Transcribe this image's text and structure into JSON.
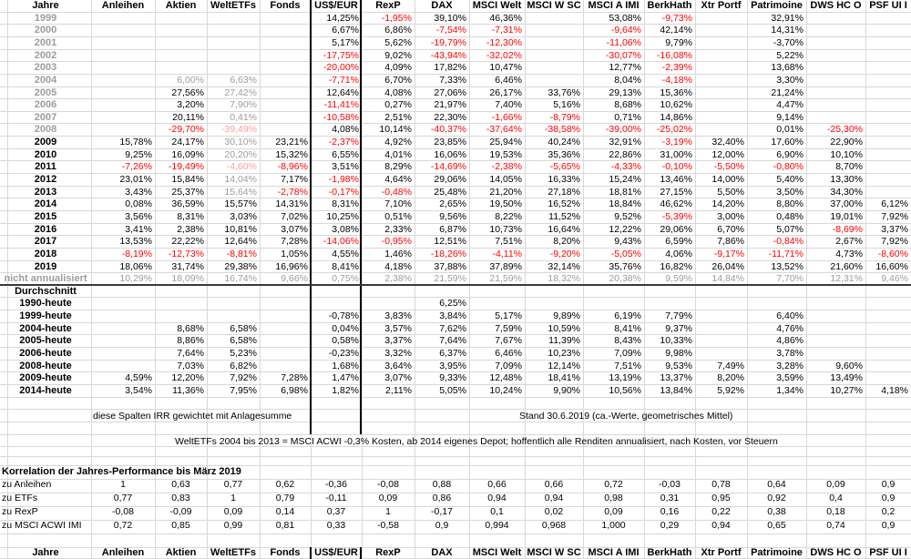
{
  "colors": {
    "red": "#ff0000",
    "gray": "#9d9d9d",
    "pink": "#ff9d9d",
    "black": "#000000",
    "grid": "#d8d8d8",
    "thick_border": "#000000"
  },
  "columns": [
    "Jahre",
    "Anleihen",
    "Aktien",
    "WeltETFs",
    "Fonds",
    "US$/EUR",
    "RexP",
    "DAX",
    "MSCI Welt",
    "MSCI W SC",
    "MSCI A IMI",
    "BerkHath",
    "Xtr Portf",
    "Patrimoine",
    "DWS HC O",
    "PSF UI I"
  ],
  "table_rows": [
    {
      "label": "1999",
      "k": "y",
      "ls": "g",
      "cells": [
        "",
        "",
        "",
        "",
        "14,25%",
        "-1,95%",
        "39,10%",
        "46,36%",
        "",
        "53,08%",
        "-9,73%",
        "",
        "32,91%",
        "",
        ""
      ]
    },
    {
      "label": "2000",
      "k": "y",
      "ls": "g",
      "cells": [
        "",
        "",
        "",
        "",
        "6,67%",
        "6,86%",
        "-7,54%",
        "-7,31%",
        "",
        "-9,64%",
        "42,14%",
        "",
        "14,31%",
        "",
        ""
      ]
    },
    {
      "label": "2001",
      "k": "y",
      "ls": "g",
      "cells": [
        "",
        "",
        "",
        "",
        "5,17%",
        "5,62%",
        "-19,79%",
        "-12,30%",
        "",
        "-11,06%",
        "9,79%",
        "",
        {
          "v": "-3,70%",
          "s": "black"
        },
        "",
        ""
      ]
    },
    {
      "label": "2002",
      "k": "y",
      "ls": "g",
      "cells": [
        "",
        "",
        "",
        "",
        "-17,75%",
        "9,02%",
        "-43,94%",
        "-32,02%",
        "",
        "-30,07%",
        "-16,08%",
        "",
        "5,22%",
        "",
        ""
      ]
    },
    {
      "label": "2003",
      "k": "y",
      "ls": "g",
      "cells": [
        "",
        "",
        "",
        "",
        "-20,00%",
        "4,09%",
        "17,82%",
        "10,47%",
        "",
        "12,77%",
        "-2,39%",
        "",
        "13,68%",
        "",
        ""
      ]
    },
    {
      "label": "2004",
      "k": "y",
      "ls": "g",
      "cells": [
        "",
        {
          "v": "6,00%",
          "s": "gray"
        },
        {
          "v": "6,63%",
          "s": "gray"
        },
        "",
        "-7,71%",
        "6,70%",
        "7,33%",
        "6,46%",
        "",
        "8,04%",
        "-4,18%",
        "",
        "3,30%",
        "",
        ""
      ]
    },
    {
      "label": "2005",
      "k": "y",
      "ls": "g",
      "cells": [
        "",
        "27,56%",
        {
          "v": "27,42%",
          "s": "gray"
        },
        "",
        "12,64%",
        "4,08%",
        "27,06%",
        "26,17%",
        "33,76%",
        "29,13%",
        "15,36%",
        "",
        "21,24%",
        "",
        ""
      ]
    },
    {
      "label": "2006",
      "k": "y",
      "ls": "g",
      "cells": [
        "",
        "3,20%",
        {
          "v": "7,90%",
          "s": "gray"
        },
        "",
        "-11,41%",
        "0,27%",
        "21,97%",
        "7,40%",
        "5,16%",
        "8,68%",
        "10,62%",
        "",
        "4,47%",
        "",
        ""
      ]
    },
    {
      "label": "2007",
      "k": "y",
      "ls": "g",
      "cells": [
        "",
        "20,11%",
        {
          "v": "0,41%",
          "s": "gray"
        },
        "",
        "-10,58%",
        "2,51%",
        "22,30%",
        "-1,66%",
        "-8,79%",
        "0,71%",
        "14,86%",
        "",
        "9,14%",
        "",
        ""
      ]
    },
    {
      "label": "2008",
      "k": "y",
      "ls": "g",
      "cells": [
        "",
        "-29,70%",
        {
          "v": "-39,49%",
          "s": "pink"
        },
        "",
        "4,08%",
        "10,14%",
        "-40,37%",
        "-37,64%",
        "-38,58%",
        "-39,00%",
        "-25,02%",
        "",
        "0,01%",
        "-25,30%",
        ""
      ]
    },
    {
      "label": "2009",
      "k": "y",
      "ls": "b",
      "cells": [
        "15,78%",
        "24,17%",
        {
          "v": "30,10%",
          "s": "gray"
        },
        "23,21%",
        "-2,37%",
        "4,92%",
        "23,85%",
        "25,94%",
        "40,24%",
        "32,91%",
        "-3,19%",
        "32,40%",
        "17,60%",
        "22,90%",
        ""
      ]
    },
    {
      "label": "2010",
      "k": "y",
      "ls": "b",
      "cells": [
        "9,25%",
        "16,09%",
        {
          "v": "20,20%",
          "s": "gray"
        },
        "15,32%",
        "6,55%",
        "4,01%",
        "16,06%",
        "19,53%",
        "35,36%",
        "22,86%",
        "31,00%",
        "12,00%",
        "6,90%",
        "10,10%",
        ""
      ]
    },
    {
      "label": "2011",
      "k": "y",
      "ls": "b",
      "cells": [
        "-7,26%",
        "-19,49%",
        {
          "v": "-4,60%",
          "s": "pink"
        },
        "-8,96%",
        "3,51%",
        "8,29%",
        "-14,69%",
        "-2,38%",
        "-5,65%",
        "-4,33%",
        "-0,10%",
        "-5,50%",
        "-0,80%",
        "8,70%",
        ""
      ]
    },
    {
      "label": "2012",
      "k": "y",
      "ls": "b",
      "cells": [
        "23,01%",
        "15,84%",
        {
          "v": "14,04%",
          "s": "gray"
        },
        "7,17%",
        "-1,98%",
        "4,64%",
        "29,06%",
        "14,05%",
        "16,33%",
        "15,24%",
        "13,46%",
        "14,00%",
        "5,40%",
        "13,30%",
        ""
      ]
    },
    {
      "label": "2013",
      "k": "y",
      "ls": "b",
      "cells": [
        "3,43%",
        "25,37%",
        {
          "v": "15,64%",
          "s": "gray"
        },
        "-2,78%",
        "-0,17%",
        "-0,48%",
        "25,48%",
        "21,20%",
        "27,18%",
        "18,81%",
        "27,15%",
        "5,50%",
        "3,50%",
        "34,30%",
        ""
      ]
    },
    {
      "label": "2014",
      "k": "y",
      "ls": "b",
      "cells": [
        "0,08%",
        "36,59%",
        "15,57%",
        "14,31%",
        "8,31%",
        "7,10%",
        "2,65%",
        "19,50%",
        "16,52%",
        "18,84%",
        "46,62%",
        "14,20%",
        "8,80%",
        "37,00%",
        "6,12%"
      ]
    },
    {
      "label": "2015",
      "k": "y",
      "ls": "b",
      "cells": [
        "3,56%",
        "8,31%",
        "3,03%",
        "7,02%",
        "10,25%",
        "0,51%",
        "9,56%",
        "8,22%",
        "11,52%",
        "9,52%",
        "-5,39%",
        "3,00%",
        "0,48%",
        "19,01%",
        "7,92%"
      ]
    },
    {
      "label": "2016",
      "k": "y",
      "ls": "b",
      "cells": [
        "3,41%",
        "2,38%",
        "10,81%",
        "3,07%",
        "3,08%",
        "2,33%",
        "6,87%",
        "10,73%",
        "16,64%",
        "12,22%",
        "29,06%",
        "6,70%",
        "5,07%",
        "-8,69%",
        "3,37%"
      ]
    },
    {
      "label": "2017",
      "k": "y",
      "ls": "b",
      "cells": [
        "13,53%",
        "22,22%",
        "12,64%",
        "7,28%",
        "-14,06%",
        "-0,95%",
        "12,51%",
        "7,51%",
        "8,20%",
        "9,43%",
        "6,59%",
        "7,86%",
        "-0,84%",
        "2,67%",
        "7,92%"
      ]
    },
    {
      "label": "2018",
      "k": "y",
      "ls": "b",
      "cells": [
        "-8,19%",
        "-12,73%",
        "-8,81%",
        "1,05%",
        "4,55%",
        "1,46%",
        "-18,26%",
        "-4,11%",
        "-9,20%",
        "-5,05%",
        "4,06%",
        "-9,17%",
        "-11,71%",
        "4,73%",
        "-8,60%"
      ]
    },
    {
      "label": "2019",
      "k": "y",
      "ls": "b",
      "cells": [
        "18,06%",
        "31,74%",
        "29,38%",
        "16,96%",
        "8,41%",
        "4,18%",
        "37,88%",
        "37,89%",
        "32,14%",
        "35,76%",
        "16,82%",
        "26,04%",
        "13,52%",
        "21,60%",
        "16,60%"
      ]
    },
    {
      "label": "nicht annualisiert",
      "k": "y",
      "ls": "g",
      "vs": "gray",
      "cells": [
        "10,29%",
        "18,09%",
        "16,74%",
        "9,66%",
        "0,75%",
        "2,38%",
        "21,59%",
        "21,59%",
        "18,32%",
        "20,38%",
        "9,59%",
        "14,84%",
        "7,70%",
        "12,31%",
        "9,46%"
      ]
    },
    {
      "label": "Durchschnitt",
      "k": "s",
      "ls": "b",
      "cells": [
        "",
        "",
        "",
        "",
        "",
        "",
        "",
        "",
        "",
        "",
        "",
        "",
        "",
        "",
        ""
      ]
    },
    {
      "label": "1990-heute",
      "k": "a",
      "ls": "b",
      "cells": [
        "",
        "",
        "",
        "",
        "",
        "",
        "6,25%",
        "",
        "",
        "",
        "",
        "",
        "",
        "",
        ""
      ]
    },
    {
      "label": "1999-heute",
      "k": "a",
      "ls": "b",
      "cells": [
        "",
        "",
        "",
        "",
        "-0,78%",
        "3,83%",
        "3,84%",
        "5,17%",
        "9,89%",
        "6,19%",
        "7,79%",
        "",
        "6,40%",
        "",
        ""
      ]
    },
    {
      "label": "2004-heute",
      "k": "a",
      "ls": "b",
      "cells": [
        "",
        "8,68%",
        "6,58%",
        "",
        "0,04%",
        "3,57%",
        "7,62%",
        "7,59%",
        "10,59%",
        "8,41%",
        "9,37%",
        "",
        "4,76%",
        "",
        ""
      ]
    },
    {
      "label": "2005-heute",
      "k": "a",
      "ls": "b",
      "cells": [
        "",
        "8,86%",
        "6,58%",
        "",
        "0,58%",
        "3,37%",
        "7,64%",
        "7,67%",
        "11,39%",
        "8,43%",
        "10,33%",
        "",
        "4,86%",
        "",
        ""
      ]
    },
    {
      "label": "2006-heute",
      "k": "a",
      "ls": "b",
      "cells": [
        "",
        "7,64%",
        "5,23%",
        "",
        "-0,23%",
        "3,32%",
        "6,37%",
        "6,46%",
        "10,23%",
        "7,09%",
        "9,98%",
        "",
        "3,78%",
        "",
        ""
      ]
    },
    {
      "label": "2008-heute",
      "k": "a",
      "ls": "b",
      "cells": [
        "",
        "7,03%",
        "6,82%",
        "",
        "1,68%",
        "3,64%",
        "3,95%",
        "7,09%",
        "12,14%",
        "7,51%",
        "9,53%",
        "7,49%",
        "3,28%",
        "9,60%",
        ""
      ]
    },
    {
      "label": "2009-heute",
      "k": "a",
      "ls": "b",
      "cells": [
        "4,59%",
        "12,20%",
        "7,92%",
        "7,28%",
        "1,47%",
        "3,07%",
        "9,33%",
        "12,48%",
        "18,41%",
        "13,19%",
        "13,37%",
        "8,20%",
        "3,59%",
        "13,49%",
        ""
      ]
    },
    {
      "label": "2014-heute",
      "k": "a",
      "ls": "b",
      "cells": [
        "3,54%",
        "11,36%",
        "7,95%",
        "6,98%",
        "1,82%",
        "2,11%",
        "5,05%",
        "10,24%",
        "9,90%",
        "10,56%",
        "13,84%",
        "5,92%",
        "1,34%",
        "10,27%",
        "4,18%"
      ]
    }
  ],
  "notes": {
    "irr": "diese Spalten IRR gewichtet mit Anlagesumme",
    "stand": "Stand 30.6.2019 (ca.-Werte, geometrisches Mittel)",
    "weltetfs": "WeltETFs 2004 bis 2013 = MSCI ACWI -0,3% Kosten, ab 2014 eigenes Depot; hoffentlich alle Renditen annualisiert, nach Kosten, vor Steuern"
  },
  "correlation": {
    "title": "Korrelation der Jahres-Performance bis März 2019",
    "rows": [
      {
        "label": "zu Anleihen",
        "values": [
          "1",
          "0,63",
          "0,77",
          "0,62",
          "-0,36",
          "-0,08",
          "0,88",
          "0,66",
          "0,66",
          "0,72",
          "-0,03",
          "0,78",
          "0,64",
          "0,09",
          "0,9"
        ]
      },
      {
        "label": "zu ETFs",
        "values": [
          "0,77",
          "0,83",
          "1",
          "0,79",
          "-0,11",
          "0,09",
          "0,86",
          "0,94",
          "0,94",
          "0,98",
          "0,31",
          "0,95",
          "0,92",
          "0,4",
          "0,9"
        ]
      },
      {
        "label": "zu RexP",
        "values": [
          "-0,08",
          "-0,09",
          "0,09",
          "0,14",
          "0,37",
          "1",
          "-0,17",
          "0,1",
          "0,02",
          "0,09",
          "0,16",
          "0,22",
          "0,38",
          "0,18",
          "0,2"
        ]
      },
      {
        "label": "zu MSCI ACWI IMI",
        "values": [
          "0,72",
          "0,85",
          "0,99",
          "0,81",
          "0,33",
          "-0,58",
          "0,9",
          "0,994",
          "0,968",
          "1,000",
          "0,29",
          "0,94",
          "0,65",
          "0,74",
          "0,9"
        ]
      }
    ]
  }
}
